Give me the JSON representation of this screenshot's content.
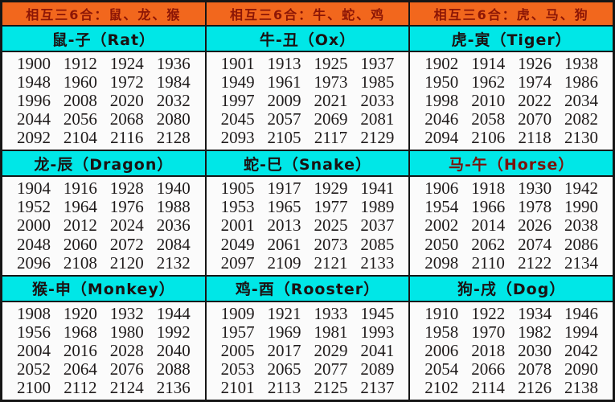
{
  "chart_data": {
    "type": "table",
    "top_headers": [
      "相互三6合：鼠、龙、猴",
      "相互三6合：牛、蛇、鸡",
      "相互三6合：虎、马、狗"
    ],
    "bands": [
      {
        "cells": [
          {
            "title": "鼠-子（Rat）",
            "title_color": "#1a1212",
            "years": [
              1900,
              1912,
              1924,
              1936,
              1948,
              1960,
              1972,
              1984,
              1996,
              2008,
              2020,
              2032,
              2044,
              2056,
              2068,
              2080,
              2092,
              2104,
              2116,
              2128
            ]
          },
          {
            "title": "牛-丑（Ox）",
            "title_color": "#1a1212",
            "years": [
              1901,
              1913,
              1925,
              1937,
              1949,
              1961,
              1973,
              1985,
              1997,
              2009,
              2021,
              2033,
              2045,
              2057,
              2069,
              2081,
              2093,
              2105,
              2117,
              2129
            ]
          },
          {
            "title": "虎-寅（Tiger）",
            "title_color": "#1a1212",
            "years": [
              1902,
              1914,
              1926,
              1938,
              1950,
              1962,
              1974,
              1986,
              1998,
              2010,
              2022,
              2034,
              2046,
              2058,
              2070,
              2082,
              2094,
              2106,
              2118,
              2130
            ]
          }
        ]
      },
      {
        "cells": [
          {
            "title": "龙-辰（Dragon）",
            "title_color": "#1a1212",
            "years": [
              1904,
              1916,
              1928,
              1940,
              1952,
              1964,
              1976,
              1988,
              2000,
              2012,
              2024,
              2036,
              2048,
              2060,
              2072,
              2084,
              2096,
              2108,
              2120,
              2132
            ]
          },
          {
            "title": "蛇-巳（Snake）",
            "title_color": "#1a1212",
            "years": [
              1905,
              1917,
              1929,
              1941,
              1953,
              1965,
              1977,
              1989,
              2001,
              2013,
              2025,
              2037,
              2049,
              2061,
              2073,
              2085,
              2097,
              2109,
              2121,
              2133
            ]
          },
          {
            "title": "马-午（Horse）",
            "title_color": "#7c120b",
            "years": [
              1906,
              1918,
              1930,
              1942,
              1954,
              1966,
              1978,
              1990,
              2002,
              2014,
              2026,
              2038,
              2050,
              2062,
              2074,
              2086,
              2098,
              2110,
              2122,
              2134
            ]
          }
        ]
      },
      {
        "cells": [
          {
            "title": "猴-申（Monkey）",
            "title_color": "#1a1212",
            "years": [
              1908,
              1920,
              1932,
              1944,
              1956,
              1968,
              1980,
              1992,
              2004,
              2016,
              2028,
              2040,
              2052,
              2064,
              2076,
              2088,
              2100,
              2112,
              2124,
              2136
            ]
          },
          {
            "title": "鸡-酉（Rooster）",
            "title_color": "#1a1212",
            "years": [
              1909,
              1921,
              1933,
              1945,
              1957,
              1969,
              1981,
              1993,
              2005,
              2017,
              2029,
              2041,
              2053,
              2065,
              2077,
              2089,
              2101,
              2113,
              2125,
              2137
            ]
          },
          {
            "title": "狗-戌（Dog）",
            "title_color": "#1a1212",
            "years": [
              1910,
              1922,
              1934,
              1946,
              1958,
              1970,
              1982,
              1994,
              2006,
              2018,
              2030,
              2042,
              2054,
              2066,
              2078,
              2090,
              2102,
              2114,
              2126,
              2138
            ]
          }
        ]
      }
    ],
    "colors": {
      "combo_header_bg": "#f2671d",
      "combo_header_text": "#8c1606",
      "zodiac_header_bg": "#00e7e7",
      "year_text": "#1f1b1b",
      "border": "#161616",
      "cell_bg": "#fbfbfb"
    }
  }
}
